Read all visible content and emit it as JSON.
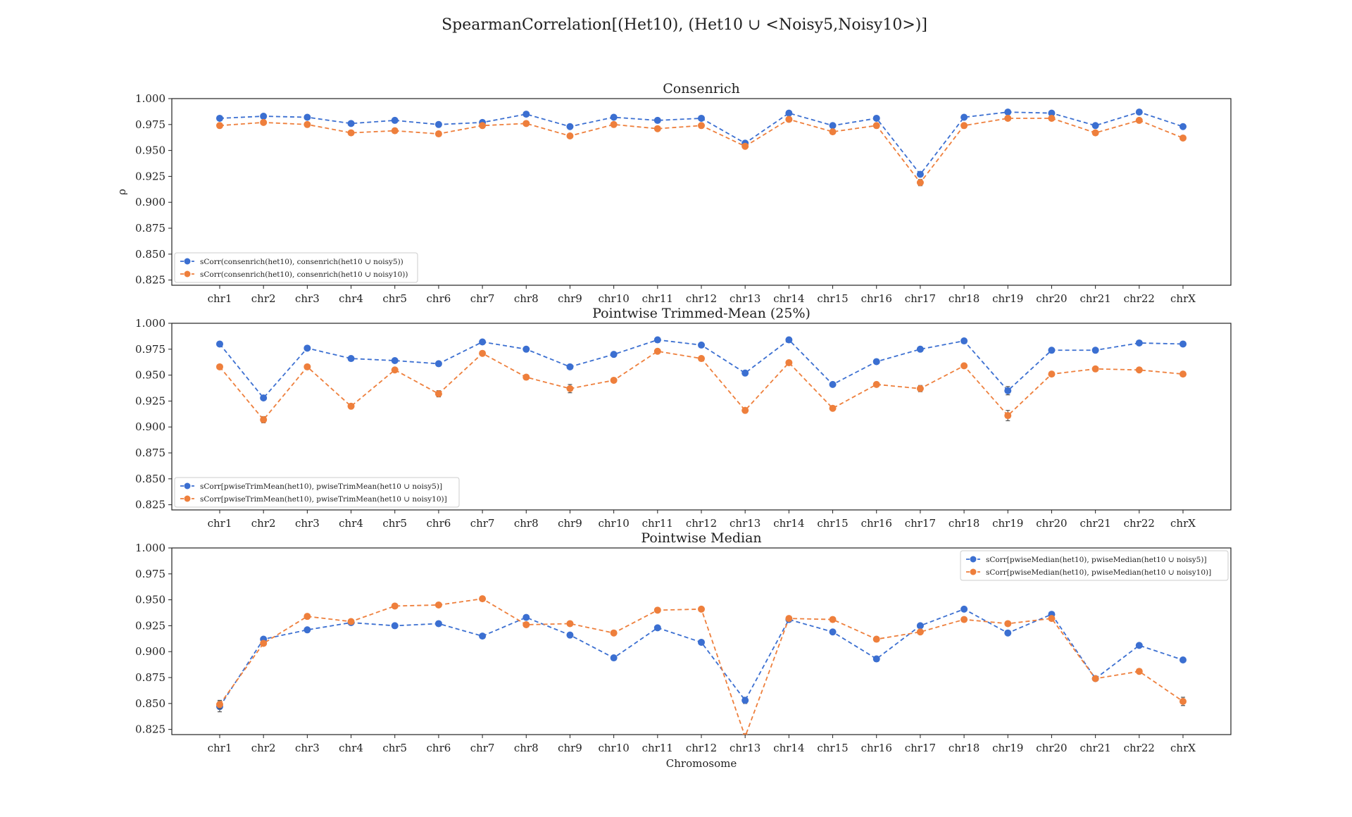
{
  "figure": {
    "title": "SpearmanCorrelation[(Het10), (Het10 ∪ <Noisy5,Noisy10>)]"
  },
  "colors": {
    "series1": "#3b6fd1",
    "series2": "#ee7f3c",
    "errorbar": "#555555"
  },
  "chart_data": [
    {
      "type": "line",
      "title": "Consenrich",
      "ylabel": "ρ",
      "xlabel": "",
      "categories": [
        "chr1",
        "chr2",
        "chr3",
        "chr4",
        "chr5",
        "chr6",
        "chr7",
        "chr8",
        "chr9",
        "chr10",
        "chr11",
        "chr12",
        "chr13",
        "chr14",
        "chr15",
        "chr16",
        "chr17",
        "chr18",
        "chr19",
        "chr20",
        "chr21",
        "chr22",
        "chrX"
      ],
      "ylim": [
        0.82,
        1.0
      ],
      "yticks": [
        "0.825",
        "0.850",
        "0.875",
        "0.900",
        "0.925",
        "0.950",
        "0.975",
        "1.000"
      ],
      "legend_position": "lower-left",
      "series": [
        {
          "name": "sCorr(consenrich(het10), consenrich(het10 ∪ noisy5))",
          "values": [
            0.981,
            0.983,
            0.982,
            0.976,
            0.979,
            0.975,
            0.977,
            0.985,
            0.973,
            0.982,
            0.979,
            0.981,
            0.957,
            0.986,
            0.974,
            0.981,
            0.927,
            0.982,
            0.987,
            0.986,
            0.974,
            0.987,
            0.973
          ],
          "errors": [
            0.001,
            0.001,
            0.001,
            0.001,
            0.001,
            0.001,
            0.001,
            0.001,
            0.001,
            0.001,
            0.001,
            0.001,
            0.002,
            0.001,
            0.001,
            0.001,
            0.002,
            0.001,
            0.001,
            0.001,
            0.001,
            0.001,
            0.001
          ]
        },
        {
          "name": "sCorr(consenrich(het10), consenrich(het10 ∪ noisy10))",
          "values": [
            0.974,
            0.977,
            0.975,
            0.967,
            0.969,
            0.966,
            0.974,
            0.976,
            0.964,
            0.975,
            0.971,
            0.974,
            0.954,
            0.98,
            0.968,
            0.974,
            0.919,
            0.974,
            0.981,
            0.981,
            0.967,
            0.979,
            0.962
          ],
          "errors": [
            0.001,
            0.001,
            0.001,
            0.001,
            0.001,
            0.001,
            0.001,
            0.001,
            0.001,
            0.001,
            0.001,
            0.001,
            0.002,
            0.001,
            0.001,
            0.001,
            0.003,
            0.001,
            0.001,
            0.001,
            0.001,
            0.001,
            0.001
          ]
        }
      ]
    },
    {
      "type": "line",
      "title": "Pointwise Trimmed-Mean (25%)",
      "ylabel": "",
      "xlabel": "",
      "categories": [
        "chr1",
        "chr2",
        "chr3",
        "chr4",
        "chr5",
        "chr6",
        "chr7",
        "chr8",
        "chr9",
        "chr10",
        "chr11",
        "chr12",
        "chr13",
        "chr14",
        "chr15",
        "chr16",
        "chr17",
        "chr18",
        "chr19",
        "chr20",
        "chr21",
        "chr22",
        "chrX"
      ],
      "ylim": [
        0.82,
        1.0
      ],
      "yticks": [
        "0.825",
        "0.850",
        "0.875",
        "0.900",
        "0.925",
        "0.950",
        "0.975",
        "1.000"
      ],
      "legend_position": "lower-left",
      "series": [
        {
          "name": "sCorr[pwiseTrimMean(het10), pwiseTrimMean(het10 ∪ noisy5)]",
          "values": [
            0.98,
            0.928,
            0.976,
            0.966,
            0.964,
            0.961,
            0.982,
            0.975,
            0.958,
            0.97,
            0.984,
            0.979,
            0.952,
            0.984,
            0.941,
            0.963,
            0.975,
            0.983,
            0.935,
            0.974,
            0.974,
            0.981,
            0.98
          ],
          "errors": [
            0.001,
            0.002,
            0.001,
            0.001,
            0.001,
            0.001,
            0.001,
            0.001,
            0.002,
            0.001,
            0.001,
            0.001,
            0.002,
            0.001,
            0.002,
            0.001,
            0.001,
            0.001,
            0.004,
            0.001,
            0.001,
            0.001,
            0.001
          ]
        },
        {
          "name": "sCorr[pwiseTrimMean(het10), pwiseTrimMean(het10 ∪ noisy10)]",
          "values": [
            0.958,
            0.907,
            0.958,
            0.92,
            0.955,
            0.932,
            0.971,
            0.948,
            0.937,
            0.945,
            0.973,
            0.966,
            0.916,
            0.962,
            0.918,
            0.941,
            0.937,
            0.959,
            0.911,
            0.951,
            0.956,
            0.955,
            0.951
          ],
          "errors": [
            0.001,
            0.003,
            0.001,
            0.002,
            0.001,
            0.003,
            0.001,
            0.001,
            0.004,
            0.001,
            0.001,
            0.001,
            0.002,
            0.001,
            0.002,
            0.001,
            0.003,
            0.001,
            0.005,
            0.001,
            0.001,
            0.001,
            0.001
          ]
        }
      ]
    },
    {
      "type": "line",
      "title": "Pointwise Median",
      "ylabel": "",
      "xlabel": "Chromosome",
      "categories": [
        "chr1",
        "chr2",
        "chr3",
        "chr4",
        "chr5",
        "chr6",
        "chr7",
        "chr8",
        "chr9",
        "chr10",
        "chr11",
        "chr12",
        "chr13",
        "chr14",
        "chr15",
        "chr16",
        "chr17",
        "chr18",
        "chr19",
        "chr20",
        "chr21",
        "chr22",
        "chrX"
      ],
      "ylim": [
        0.82,
        1.0
      ],
      "yticks": [
        "0.825",
        "0.850",
        "0.875",
        "0.900",
        "0.925",
        "0.950",
        "0.975",
        "1.000"
      ],
      "legend_position": "upper-right",
      "series": [
        {
          "name": "sCorr[pwiseMedian(het10), pwiseMedian(het10 ∪ noisy5)]",
          "values": [
            0.847,
            0.912,
            0.921,
            0.928,
            0.925,
            0.927,
            0.915,
            0.933,
            0.916,
            0.894,
            0.923,
            0.909,
            0.853,
            0.931,
            0.919,
            0.893,
            0.925,
            0.941,
            0.918,
            0.936,
            0.874,
            0.906,
            0.892
          ],
          "errors": [
            0.005,
            0.002,
            0.001,
            0.001,
            0.001,
            0.001,
            0.001,
            0.001,
            0.001,
            0.001,
            0.001,
            0.001,
            0.003,
            0.001,
            0.001,
            0.001,
            0.001,
            0.001,
            0.002,
            0.001,
            0.002,
            0.001,
            0.001
          ]
        },
        {
          "name": "sCorr[pwiseMedian(het10), pwiseMedian(het10 ∪ noisy10)]",
          "values": [
            0.849,
            0.908,
            0.934,
            0.929,
            0.944,
            0.945,
            0.951,
            0.926,
            0.927,
            0.918,
            0.94,
            0.941,
            0.818,
            0.932,
            0.931,
            0.912,
            0.919,
            0.931,
            0.927,
            0.932,
            0.874,
            0.881,
            0.852
          ],
          "errors": [
            0.004,
            0.002,
            0.001,
            0.001,
            0.001,
            0.001,
            0.001,
            0.001,
            0.001,
            0.001,
            0.001,
            0.001,
            0.003,
            0.001,
            0.001,
            0.001,
            0.001,
            0.001,
            0.001,
            0.001,
            0.002,
            0.002,
            0.004
          ]
        }
      ]
    }
  ]
}
